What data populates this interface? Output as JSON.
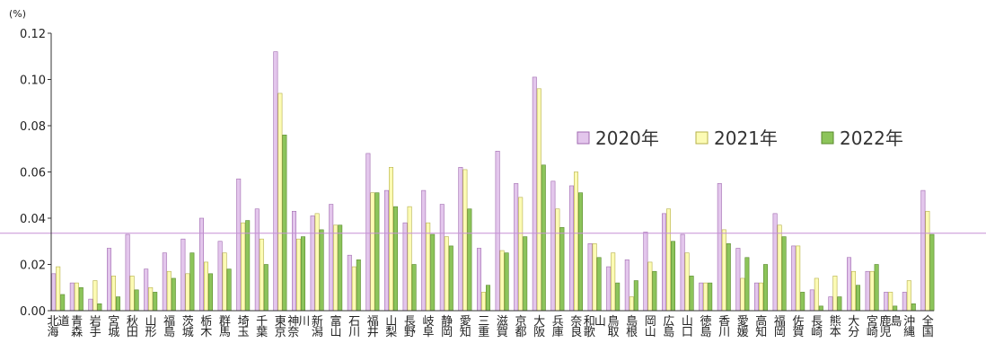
{
  "chart_data": {
    "type": "bar",
    "unit_label": "(%)",
    "ylim": [
      0,
      0.12
    ],
    "yticks": [
      "0.00",
      "0.02",
      "0.04",
      "0.06",
      "0.08",
      "0.10",
      "0.12"
    ],
    "reference_line": 0.0335,
    "grid": false,
    "legend_position": "right-middle",
    "categories": [
      "北海道",
      "青森",
      "岩手",
      "宮城",
      "秋田",
      "山形",
      "福島",
      "茨城",
      "栃木",
      "群馬",
      "埼玉",
      "千葉",
      "東京",
      "神奈川",
      "新潟",
      "富山",
      "石川",
      "福井",
      "山梨",
      "長野",
      "岐阜",
      "静岡",
      "愛知",
      "三重",
      "滋賀",
      "京都",
      "大阪",
      "兵庫",
      "奈良",
      "和歌山",
      "鳥取",
      "島根",
      "岡山",
      "広島",
      "山口",
      "徳島",
      "香川",
      "愛媛",
      "高知",
      "福岡",
      "佐賀",
      "長崎",
      "熊本",
      "大分",
      "宮崎",
      "鹿児島",
      "沖縄",
      "全国"
    ],
    "series": [
      {
        "name": "2020年",
        "color": "#e3c6ec",
        "stroke": "#a06ab0",
        "values": [
          0.016,
          0.012,
          0.005,
          0.027,
          0.033,
          0.018,
          0.025,
          0.031,
          0.04,
          0.03,
          0.057,
          0.044,
          0.112,
          0.043,
          0.041,
          0.046,
          0.024,
          0.068,
          0.052,
          0.038,
          0.052,
          0.046,
          0.062,
          0.027,
          0.069,
          0.055,
          0.101,
          0.056,
          0.054,
          0.029,
          0.019,
          0.022,
          0.034,
          0.042,
          0.033,
          0.012,
          0.055,
          0.027,
          0.012,
          0.042,
          0.028,
          0.009,
          0.006,
          0.023,
          0.017,
          0.008,
          0.008,
          0.052
        ]
      },
      {
        "name": "2021年",
        "color": "#fcfbb4",
        "stroke": "#b6b04a",
        "values": [
          0.019,
          0.012,
          0.013,
          0.015,
          0.015,
          0.01,
          0.017,
          0.016,
          0.021,
          0.025,
          0.038,
          0.031,
          0.094,
          0.031,
          0.042,
          0.037,
          0.019,
          0.051,
          0.062,
          0.045,
          0.038,
          0.032,
          0.061,
          0.008,
          0.026,
          0.049,
          0.096,
          0.044,
          0.06,
          0.029,
          0.025,
          0.006,
          0.021,
          0.044,
          0.025,
          0.012,
          0.035,
          0.014,
          0.012,
          0.037,
          0.028,
          0.014,
          0.015,
          0.017,
          0.017,
          0.008,
          0.013,
          0.043
        ]
      },
      {
        "name": "2022年",
        "color": "#8cc45a",
        "stroke": "#5a8a2e",
        "values": [
          0.007,
          0.01,
          0.003,
          0.006,
          0.009,
          0.008,
          0.014,
          0.025,
          0.016,
          0.018,
          0.039,
          0.02,
          0.076,
          0.032,
          0.035,
          0.037,
          0.022,
          0.051,
          0.045,
          0.02,
          0.033,
          0.028,
          0.044,
          0.011,
          0.025,
          0.032,
          0.063,
          0.036,
          0.051,
          0.023,
          0.012,
          0.013,
          0.017,
          0.03,
          0.015,
          0.012,
          0.029,
          0.023,
          0.02,
          0.032,
          0.008,
          0.002,
          0.006,
          0.011,
          0.02,
          0.002,
          0.003,
          0.033
        ]
      }
    ]
  }
}
